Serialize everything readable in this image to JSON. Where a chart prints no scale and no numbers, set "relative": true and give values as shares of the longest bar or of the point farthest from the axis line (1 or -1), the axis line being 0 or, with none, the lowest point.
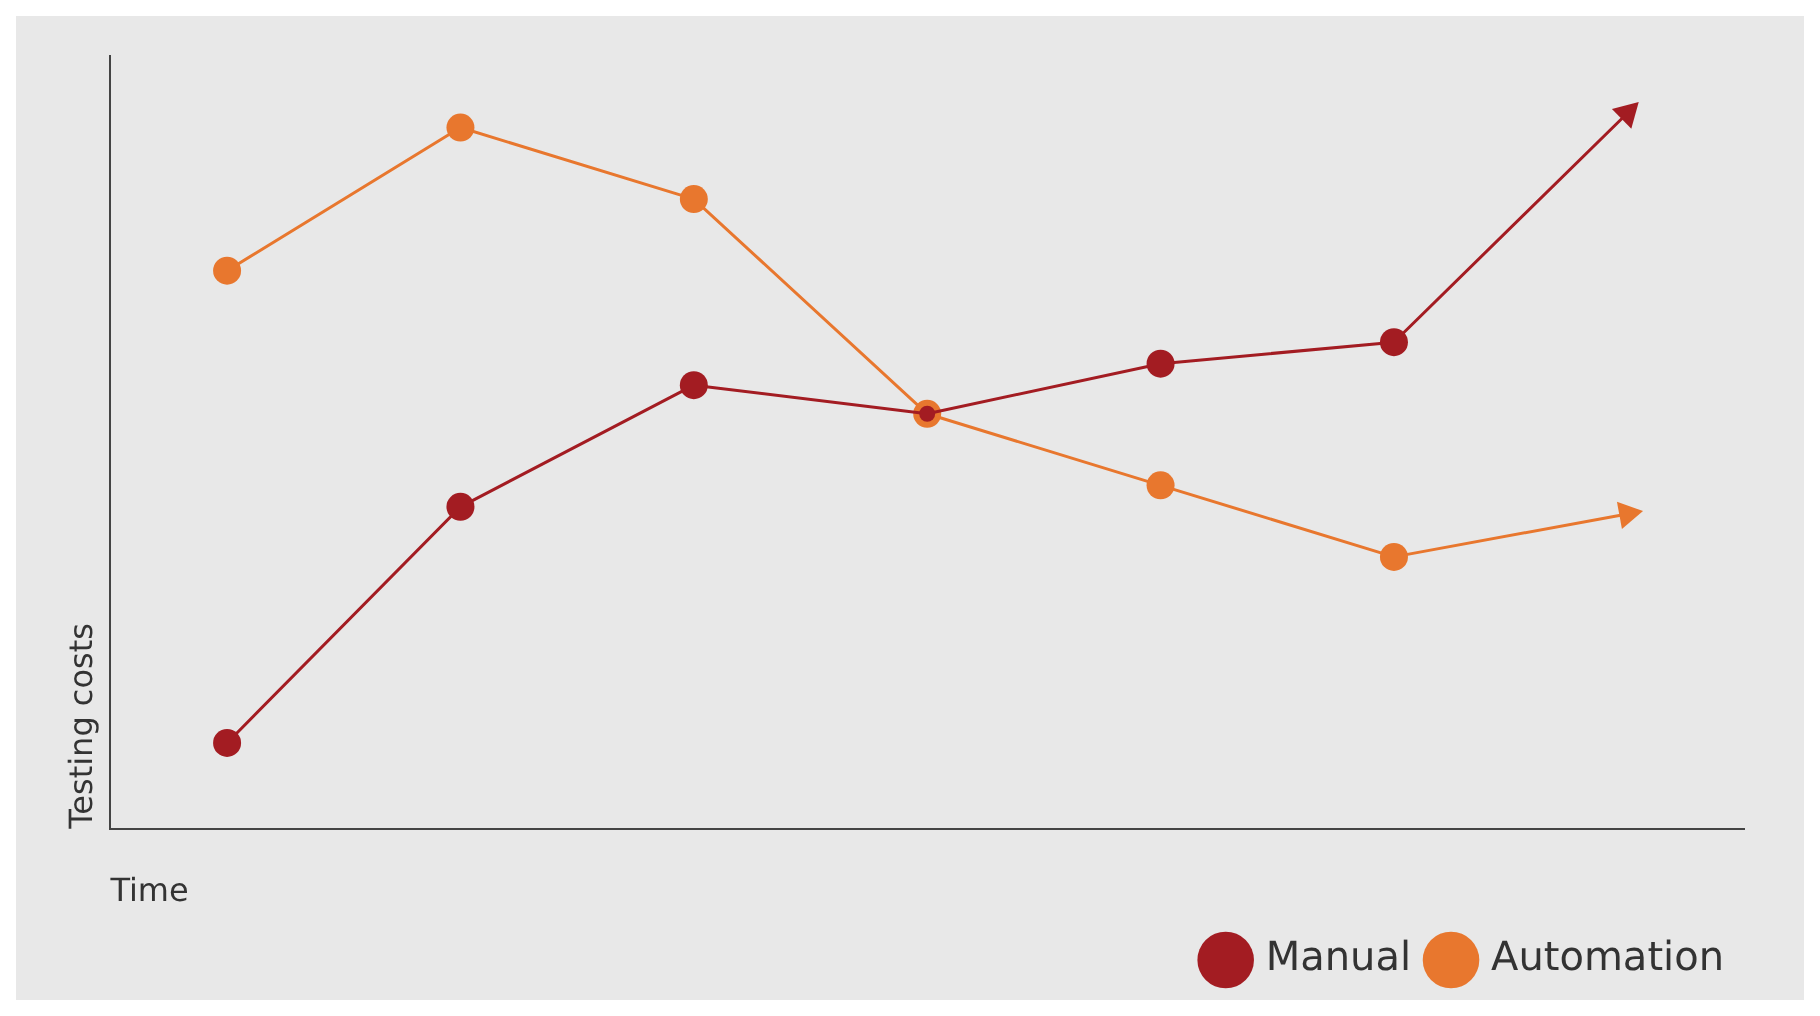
{
  "chart_data": {
    "type": "line",
    "relative": true,
    "xlabel": "Time",
    "ylabel": "Testing costs",
    "categories": [
      null,
      null,
      null,
      null,
      null,
      null,
      null
    ],
    "series": [
      {
        "name": "Automation",
        "color": "#e8772e",
        "values": [
          0.78,
          0.98,
          0.88,
          0.58,
          0.48,
          0.38,
          0.44
        ]
      },
      {
        "name": "Manual",
        "color": "#a31c22",
        "values": [
          0.12,
          0.45,
          0.62,
          0.58,
          0.65,
          0.68,
          1.0
        ]
      }
    ],
    "legend": "bottom right",
    "grid": false,
    "marker": "circle",
    "line_style": "solid"
  }
}
